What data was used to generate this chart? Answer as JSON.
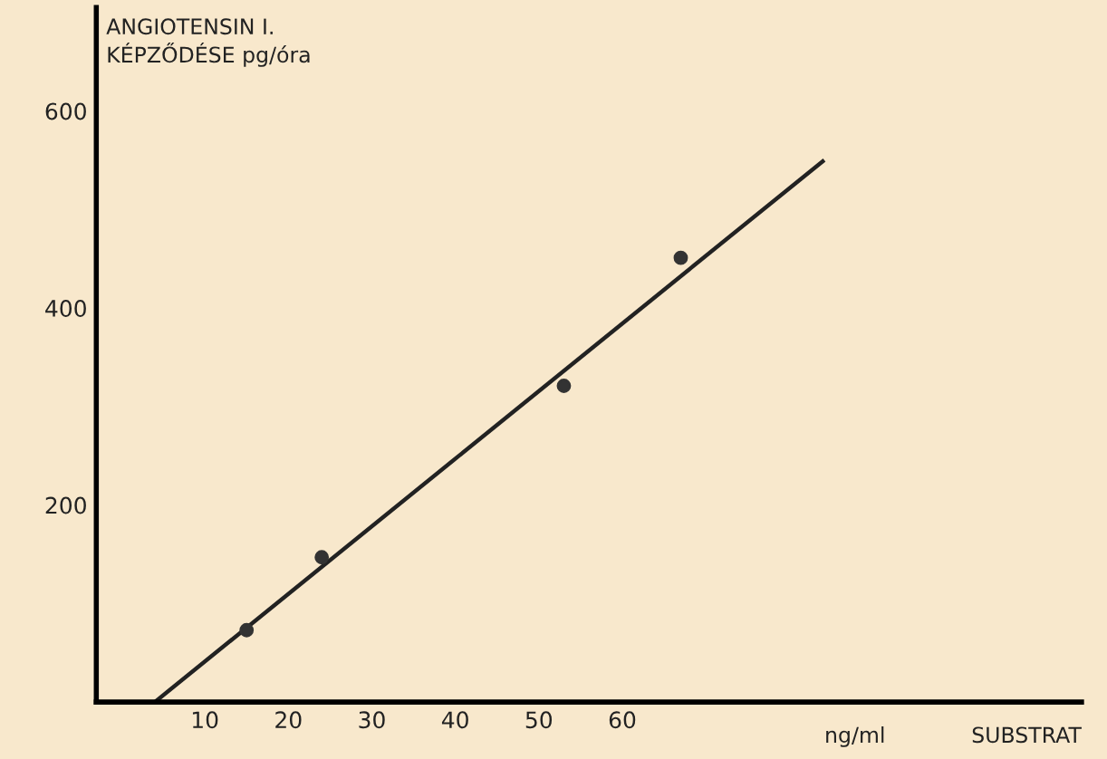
{
  "chart_data": {
    "type": "scatter",
    "ylabel": "ANGIOTENSIN I.\nKÉPZŐDÉSE pg/óra",
    "xlabel": "SUBSTRAT",
    "annotations": [
      "ng/ml"
    ],
    "xlim": [
      -3,
      115
    ],
    "ylim": [
      0,
      705
    ],
    "xticks": [
      10,
      20,
      30,
      40,
      50,
      60
    ],
    "yticks": [
      200,
      400,
      600
    ],
    "series": [
      {
        "color": "#333333",
        "x": [
          15,
          24,
          53,
          67
        ],
        "values": [
          73,
          147,
          321,
          451
        ]
      },
      {
        "type": "line",
        "marker": "none",
        "color": "#222222",
        "x": [
          4,
          84
        ],
        "values": [
          0,
          549
        ]
      }
    ],
    "marker": "circle",
    "grid": false
  }
}
